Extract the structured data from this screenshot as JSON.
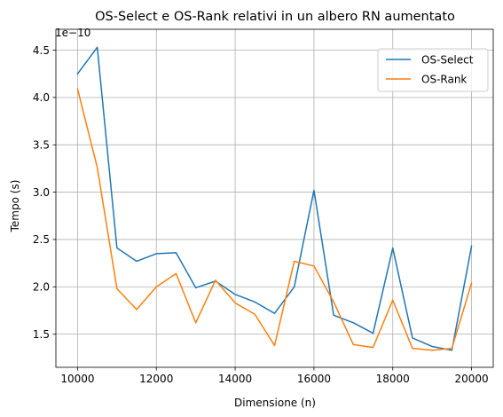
{
  "chart_data": {
    "type": "line",
    "title": "OS-Select e OS-Rank relativi in un albero RN aumentato",
    "xlabel": "Dimensione (n)",
    "ylabel": "Tempo (s)",
    "y_offset_label": "1e−10",
    "grid": true,
    "legend_position": "top-right",
    "xlim": [
      9450,
      20550
    ],
    "ylim": [
      1.15,
      4.72
    ],
    "xticks": [
      10000,
      12000,
      14000,
      16000,
      18000,
      20000
    ],
    "xtick_labels": [
      "10000",
      "12000",
      "14000",
      "16000",
      "18000",
      "20000"
    ],
    "yticks": [
      1.5,
      2.0,
      2.5,
      3.0,
      3.5,
      4.0,
      4.5
    ],
    "ytick_labels": [
      "1.5",
      "2.0",
      "2.5",
      "3.0",
      "3.5",
      "4.0",
      "4.5"
    ],
    "x": [
      10000,
      10500,
      11000,
      11500,
      12000,
      12500,
      13000,
      13500,
      14000,
      14500,
      15000,
      15500,
      16000,
      16500,
      17000,
      17500,
      18000,
      18500,
      19000,
      19500,
      20000
    ],
    "series": [
      {
        "name": "OS-Select",
        "color": "#1f77b4",
        "values": [
          4.25,
          4.53,
          2.41,
          2.27,
          2.35,
          2.36,
          1.99,
          2.06,
          1.92,
          1.84,
          1.72,
          2.0,
          3.02,
          1.7,
          1.62,
          1.51,
          2.41,
          1.46,
          1.37,
          1.33,
          2.43
        ]
      },
      {
        "name": "OS-Rank",
        "color": "#ff7f0e",
        "values": [
          4.09,
          3.26,
          1.98,
          1.76,
          2.0,
          2.14,
          1.62,
          2.07,
          1.83,
          1.71,
          1.38,
          2.27,
          2.22,
          1.84,
          1.39,
          1.36,
          1.86,
          1.35,
          1.33,
          1.35,
          2.04
        ]
      }
    ]
  }
}
